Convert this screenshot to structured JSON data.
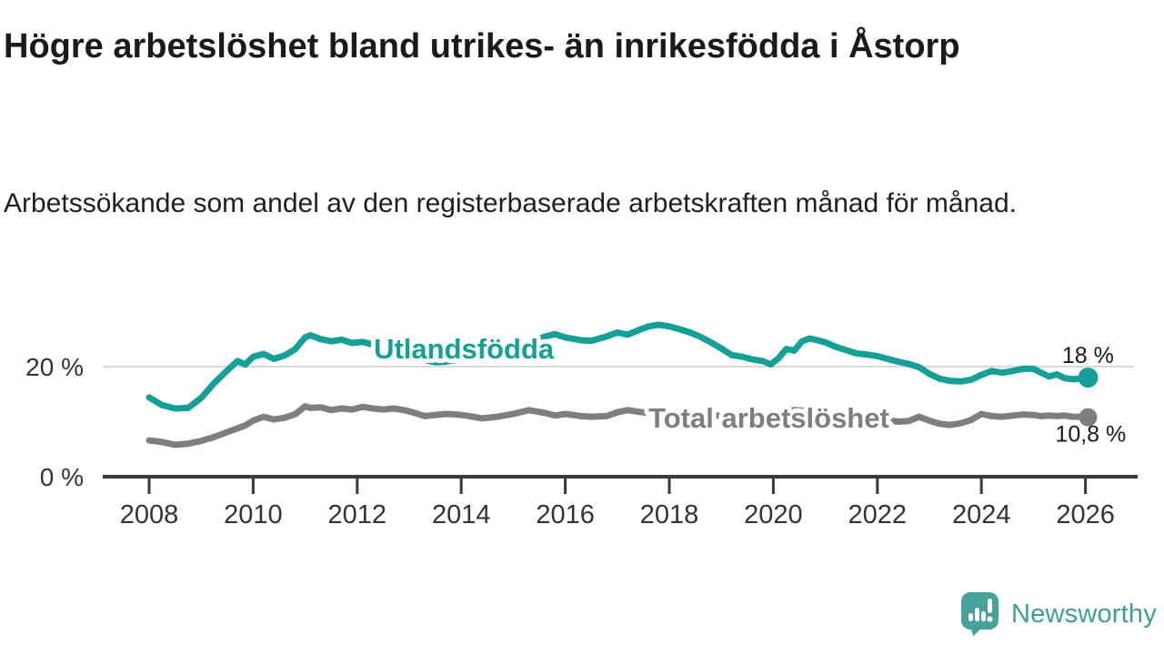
{
  "header": {
    "title": "Högre arbetslöshet bland utrikes- än inrikesfödda i Åstorp",
    "subtitle": "Arbetssökande som andel av den registerbaserade arbetskraften månad för månad."
  },
  "footer": {
    "brand": "Newsworthy"
  },
  "chart_data": {
    "type": "line",
    "title": "Högre arbetslöshet bland utrikes- än inrikesfödda i Åstorp",
    "subtitle": "Arbetssökande som andel av den registerbaserade arbetskraften månad för månad.",
    "unit": "%",
    "grid": "horizontal-only",
    "legend_position": "inline-labels",
    "x_axis": {
      "range": [
        2007.1,
        2027.0
      ],
      "ticks": [
        2008,
        2010,
        2012,
        2014,
        2016,
        2018,
        2020,
        2022,
        2024,
        2026
      ]
    },
    "y_axis": {
      "range": [
        0,
        33
      ],
      "ticks": [
        {
          "value": 20,
          "label": "20 %"
        },
        {
          "value": 0,
          "label": "0 %"
        }
      ]
    },
    "series": [
      {
        "name": "Utlandsfödda",
        "color": "#14a096",
        "label": {
          "text": "Utlandsfödda",
          "x": 2012.32,
          "value": 21.5
        },
        "end_dot": true,
        "x": [
          2008.0,
          2008.25,
          2008.5,
          2008.75,
          2009.0,
          2009.25,
          2009.5,
          2009.7,
          2009.85,
          2010.0,
          2010.2,
          2010.4,
          2010.6,
          2010.8,
          2011.0,
          2011.1,
          2011.3,
          2011.5,
          2011.7,
          2011.9,
          2012.1,
          2012.3,
          2012.5,
          2012.7,
          2012.9,
          2013.1,
          2013.3,
          2013.5,
          2013.7,
          2013.9,
          2014.1,
          2014.4,
          2014.7,
          2015.0,
          2015.3,
          2015.6,
          2015.8,
          2016.0,
          2016.3,
          2016.5,
          2016.8,
          2017.0,
          2017.2,
          2017.4,
          2017.6,
          2017.8,
          2018.0,
          2018.2,
          2018.4,
          2018.6,
          2018.8,
          2019.0,
          2019.2,
          2019.4,
          2019.6,
          2019.8,
          2019.95,
          2020.1,
          2020.25,
          2020.4,
          2020.55,
          2020.7,
          2020.85,
          2021.0,
          2021.2,
          2021.4,
          2021.6,
          2021.8,
          2022.0,
          2022.2,
          2022.4,
          2022.6,
          2022.8,
          2023.0,
          2023.2,
          2023.4,
          2023.6,
          2023.8,
          2024.0,
          2024.2,
          2024.4,
          2024.6,
          2024.8,
          2025.0,
          2025.15,
          2025.3,
          2025.45,
          2025.6,
          2025.75,
          2025.9,
          2026.05
        ],
        "values": [
          14.4,
          13.0,
          12.4,
          12.5,
          14.3,
          17.0,
          19.3,
          21.0,
          20.4,
          21.8,
          22.3,
          21.4,
          22.0,
          23.1,
          25.3,
          25.7,
          25.0,
          24.6,
          24.9,
          24.3,
          24.5,
          24.0,
          23.8,
          24.1,
          23.6,
          22.4,
          21.2,
          20.8,
          20.9,
          21.2,
          21.5,
          21.9,
          22.5,
          23.3,
          24.3,
          25.4,
          25.9,
          25.3,
          24.8,
          24.7,
          25.5,
          26.2,
          25.8,
          26.6,
          27.3,
          27.6,
          27.3,
          26.8,
          26.2,
          25.4,
          24.4,
          23.3,
          22.1,
          21.8,
          21.3,
          21.0,
          20.4,
          21.5,
          23.2,
          22.9,
          24.6,
          25.1,
          24.8,
          24.4,
          23.6,
          23.0,
          22.4,
          22.2,
          21.9,
          21.4,
          20.9,
          20.5,
          19.9,
          18.7,
          17.8,
          17.4,
          17.3,
          17.6,
          18.5,
          19.2,
          18.9,
          19.2,
          19.6,
          19.6,
          18.9,
          18.2,
          18.6,
          17.9,
          17.7,
          17.8,
          18.0
        ]
      },
      {
        "name": "Total arbetslöshet",
        "color": "#7e7e7e",
        "label": {
          "text": "Total arbetslöshet",
          "x": 2017.6,
          "value": 8.9
        },
        "end_dot": true,
        "x": [
          2008.0,
          2008.25,
          2008.5,
          2008.75,
          2009.0,
          2009.25,
          2009.5,
          2009.7,
          2009.85,
          2010.0,
          2010.2,
          2010.4,
          2010.6,
          2010.8,
          2011.0,
          2011.1,
          2011.3,
          2011.5,
          2011.7,
          2011.9,
          2012.1,
          2012.3,
          2012.5,
          2012.7,
          2012.9,
          2013.1,
          2013.3,
          2013.5,
          2013.7,
          2013.9,
          2014.1,
          2014.4,
          2014.7,
          2015.0,
          2015.3,
          2015.6,
          2015.8,
          2016.0,
          2016.3,
          2016.5,
          2016.8,
          2017.0,
          2017.2,
          2017.4,
          2017.6,
          2017.8,
          2018.0,
          2018.2,
          2018.4,
          2018.6,
          2018.8,
          2019.0,
          2019.2,
          2019.4,
          2019.6,
          2019.8,
          2019.95,
          2020.1,
          2020.25,
          2020.4,
          2020.55,
          2020.7,
          2020.85,
          2021.0,
          2021.2,
          2021.4,
          2021.6,
          2021.8,
          2022.0,
          2022.2,
          2022.4,
          2022.6,
          2022.8,
          2023.0,
          2023.2,
          2023.4,
          2023.6,
          2023.8,
          2024.0,
          2024.2,
          2024.4,
          2024.6,
          2024.8,
          2025.0,
          2025.15,
          2025.3,
          2025.45,
          2025.6,
          2025.75,
          2025.9,
          2026.05
        ],
        "values": [
          6.6,
          6.3,
          5.8,
          6.0,
          6.5,
          7.2,
          8.1,
          8.8,
          9.3,
          10.2,
          10.9,
          10.4,
          10.7,
          11.3,
          12.8,
          12.5,
          12.6,
          12.1,
          12.4,
          12.2,
          12.7,
          12.4,
          12.2,
          12.4,
          12.1,
          11.6,
          11.0,
          11.2,
          11.4,
          11.3,
          11.1,
          10.6,
          10.9,
          11.4,
          12.1,
          11.6,
          11.1,
          11.4,
          11.0,
          10.9,
          11.0,
          11.7,
          12.1,
          11.8,
          11.6,
          11.8,
          11.7,
          11.5,
          11.3,
          11.4,
          11.2,
          11.0,
          10.9,
          11.0,
          10.8,
          11.0,
          11.2,
          11.5,
          11.9,
          12.1,
          12.0,
          11.9,
          11.8,
          11.7,
          11.4,
          11.2,
          11.0,
          10.8,
          10.6,
          10.3,
          10.0,
          10.1,
          10.9,
          10.2,
          9.6,
          9.4,
          9.7,
          10.3,
          11.4,
          11.0,
          10.9,
          11.1,
          11.3,
          11.2,
          11.0,
          11.1,
          11.0,
          11.1,
          10.9,
          10.9,
          10.8
        ]
      }
    ],
    "annotations": [
      {
        "text": "18 %",
        "x": 2025.55,
        "value": 20.7
      },
      {
        "text": "10,8 %",
        "x": 2025.42,
        "value": 6.4
      }
    ]
  }
}
